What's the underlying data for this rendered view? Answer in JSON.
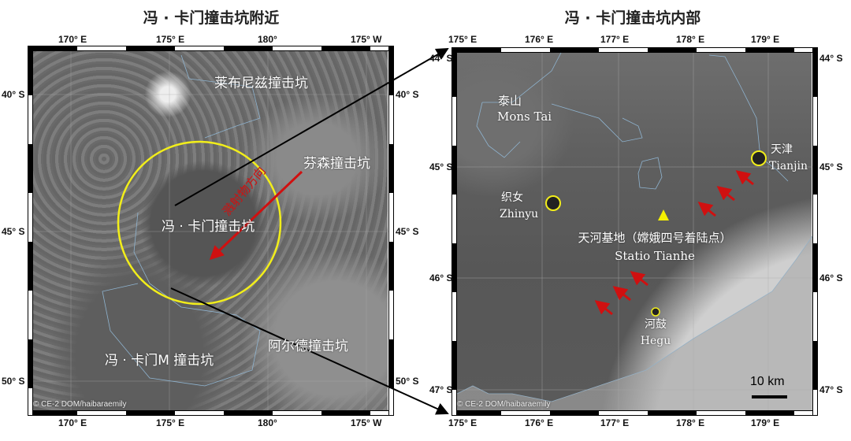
{
  "left": {
    "title": "冯 · 卡门撞击坑附近",
    "lon_ticks": [
      "170° E",
      "175° E",
      "180°",
      "175° W"
    ],
    "lat_ticks": [
      "40° S",
      "45° S",
      "50° S"
    ],
    "labels": {
      "leibnitz": "莱布尼兹撞击坑",
      "finsen": "芬森撞击坑",
      "von_karman": "冯 · 卡门撞击坑",
      "von_karman_m": "冯 · 卡门M 撞击坑",
      "alder": "阿尔德撞击坑",
      "ejecta_direction": "溅射物方向"
    },
    "credit": "© CE-2 DOM/haibaraemily"
  },
  "right": {
    "title": "冯 · 卡门撞击坑内部",
    "lon_ticks": [
      "175° E",
      "176° E",
      "177° E",
      "178° E",
      "179° E"
    ],
    "lat_ticks": [
      "44° S",
      "45° S",
      "46° S",
      "47° S"
    ],
    "labels": {
      "mons_tai_cn": "泰山",
      "mons_tai_en": "Mons Tai",
      "zhinyu_cn": "织女",
      "zhinyu_en": "Zhinyu",
      "tianjin_cn": "天津",
      "tianjin_en": "Tianjin",
      "tianhe_cn": "天河基地（嫦娥四号着陆点）",
      "tianhe_en": "Statio Tianhe",
      "hegu_cn": "河鼓",
      "hegu_en": "Hegu"
    },
    "scale_bar": "10 km",
    "credit": "© CE-2 DOM/haibaraemily"
  },
  "colors": {
    "crater_circle": "#f2ee1a",
    "arrow": "#d01010",
    "landing_site": "#f5f000",
    "boundary": "#8fb4d0"
  }
}
